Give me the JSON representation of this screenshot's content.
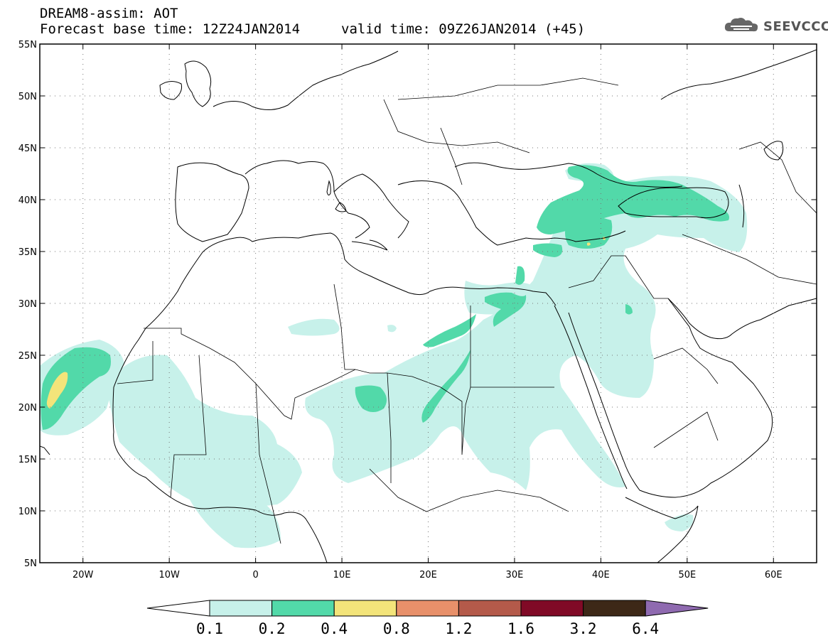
{
  "header": {
    "title": "DREAM8-assim: AOT",
    "base_time": "Forecast base time: 12Z24JAN2014",
    "valid_time": "valid time: 09Z26JAN2014 (+45)"
  },
  "logo": {
    "text": "SEEVCCC",
    "icon": "cloud-icon"
  },
  "map": {
    "lon_ticks": [
      "20W",
      "10W",
      "0",
      "10E",
      "20E",
      "30E",
      "40E",
      "50E",
      "60E"
    ],
    "lat_ticks": [
      "55N",
      "50N",
      "45N",
      "40N",
      "35N",
      "30N",
      "25N",
      "20N",
      "15N",
      "10N",
      "5N"
    ],
    "lon_range": [
      -25,
      65
    ],
    "lat_range": [
      5,
      55
    ],
    "grid": "dotted"
  },
  "colorbar": {
    "labels": [
      "0.1",
      "0.2",
      "0.4",
      "0.8",
      "1.2",
      "1.6",
      "3.2",
      "6.4"
    ],
    "colors": [
      "#c7f1ea",
      "#52d9a9",
      "#f3e47a",
      "#e8906a",
      "#b45a4a",
      "#800a26",
      "#3d2817",
      "#8f6ab0"
    ],
    "under_color": "#ffffff"
  },
  "colors": {
    "level1": "#c7f1ea",
    "level2": "#52d9a9",
    "level3": "#f3e47a"
  }
}
